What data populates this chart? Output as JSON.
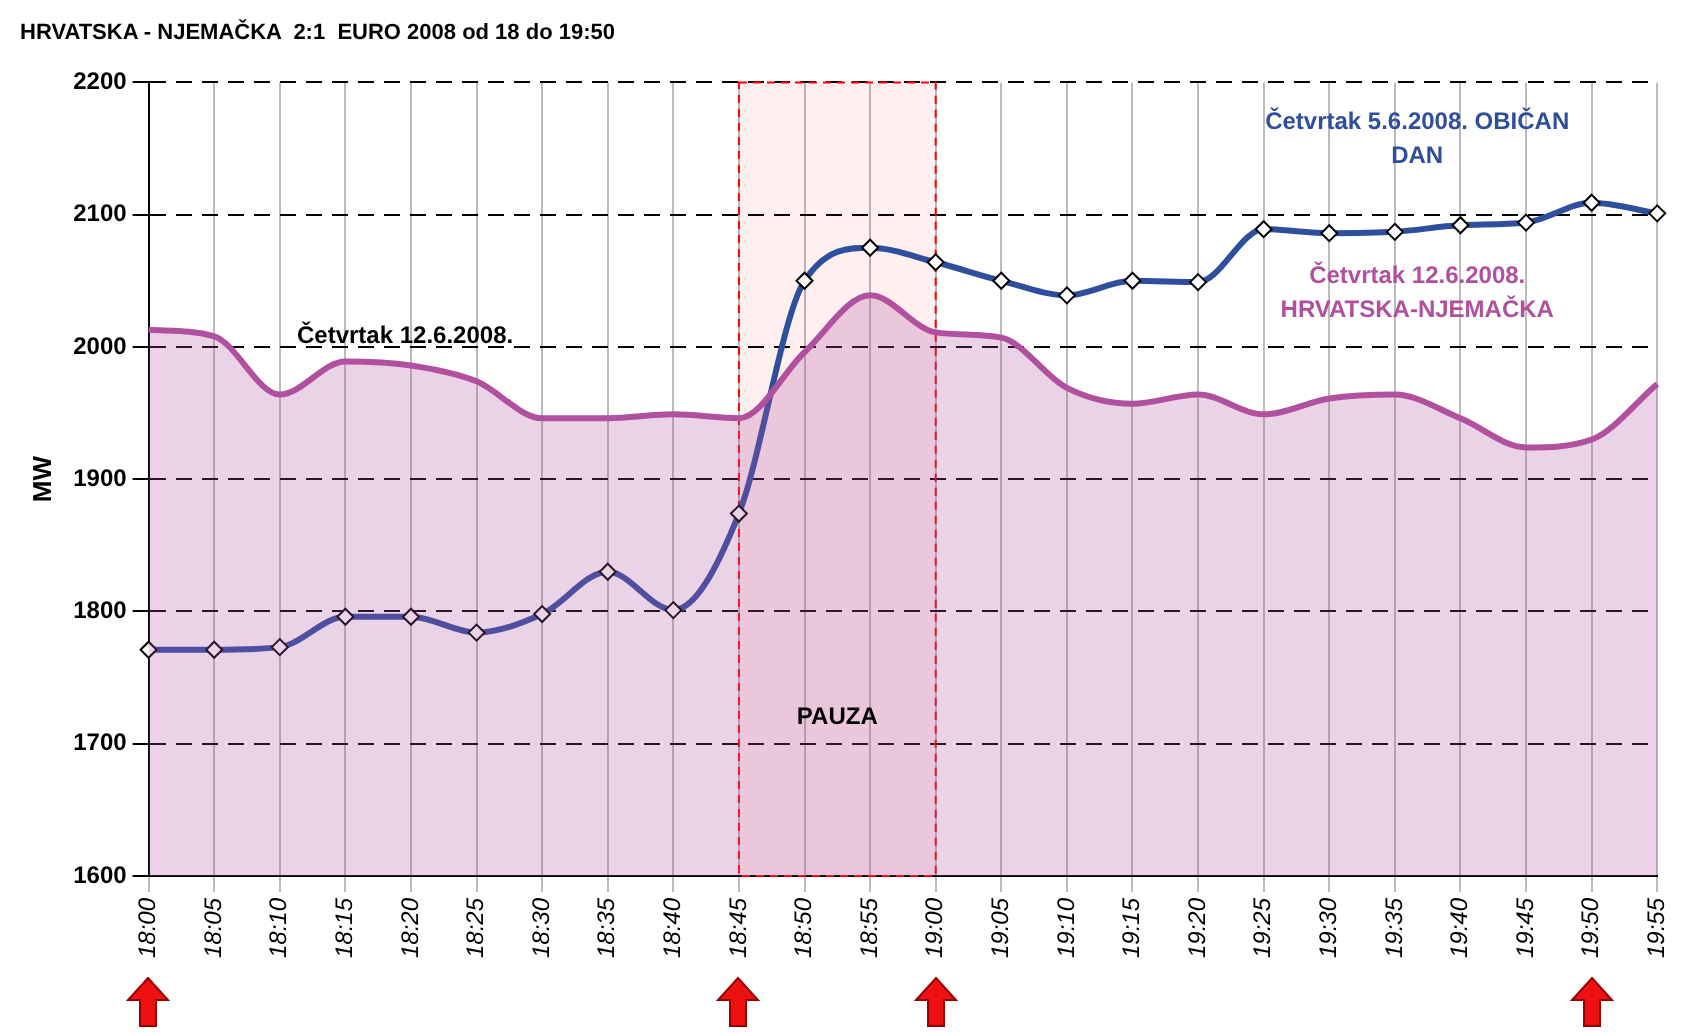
{
  "chart_data": {
    "type": "line",
    "title": "HRVATSKA - NJEMAČKA  2:1  EURO 2008 od 18 do 19:50",
    "ylabel": "MW",
    "categories": [
      "18:00",
      "18:05",
      "18:10",
      "18:15",
      "18:20",
      "18:25",
      "18:30",
      "18:35",
      "18:40",
      "18:45",
      "18:50",
      "18:55",
      "19:00",
      "19:05",
      "19:10",
      "19:15",
      "19:20",
      "19:25",
      "19:30",
      "19:35",
      "19:40",
      "19:45",
      "19:50",
      "19:55"
    ],
    "series": [
      {
        "name": "Četvrtak 12.6.2008. HRVATSKA-NJEMAČKA",
        "type": "area",
        "color": "#b0509e",
        "marker": "none",
        "values": [
          2013,
          2008,
          1964,
          1989,
          1986,
          1974,
          1946,
          1946,
          1949,
          1946,
          1996,
          2039,
          2011,
          2007,
          1969,
          1957,
          1964,
          1949,
          1961,
          1964,
          1946,
          1924,
          1930,
          1972
        ]
      },
      {
        "name": "Četvrtak 5.6.2008. OBIČAN DAN",
        "type": "line",
        "color": "#2e4f9e",
        "marker": "diamond",
        "values": [
          1771,
          1771,
          1773,
          1796,
          1796,
          1784,
          1798,
          1830,
          1801,
          1874,
          2050,
          2075,
          2064,
          2050,
          2039,
          2050,
          2049,
          2089,
          2086,
          2087,
          2092,
          2094,
          2109,
          2101
        ]
      }
    ],
    "ylim": [
      1600,
      2200
    ],
    "yticks": [
      1600,
      1700,
      1800,
      1900,
      2000,
      2100,
      2200
    ],
    "grid": true,
    "legend": false,
    "bands": [
      {
        "axis": "x",
        "from": "18:45",
        "to": "19:00",
        "label": "PAUZA",
        "color": "#ff0000"
      }
    ],
    "annotations": [
      "Četvrtak 12.6.2008."
    ]
  }
}
